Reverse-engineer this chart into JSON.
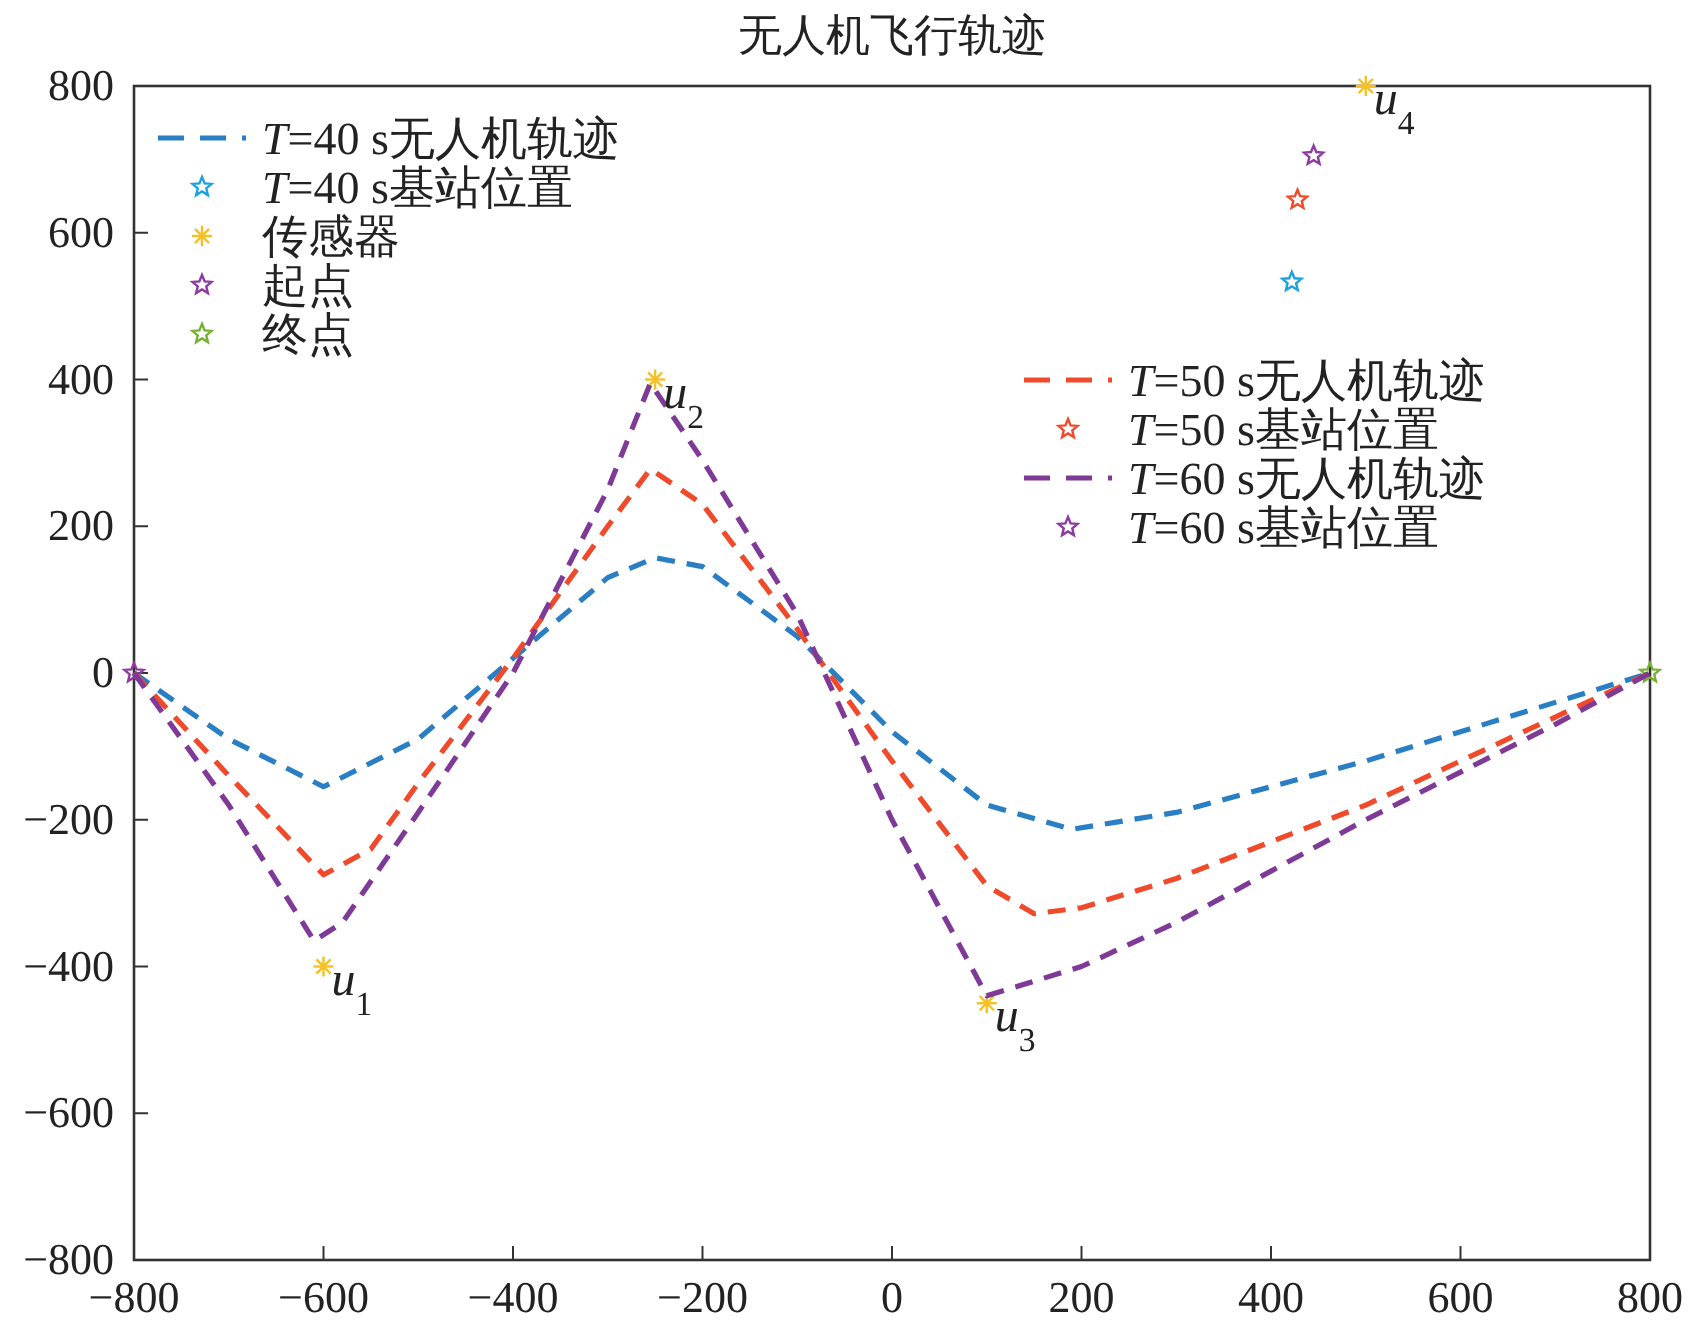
{
  "chart_data": {
    "type": "line",
    "title": "无人机飞行轨迹",
    "xlim": [
      -800,
      800
    ],
    "ylim": [
      -800,
      800
    ],
    "xticks": [
      -800,
      -600,
      -400,
      -200,
      0,
      200,
      400,
      600,
      800
    ],
    "yticks": [
      -800,
      -600,
      -400,
      -200,
      0,
      200,
      400,
      600,
      800
    ],
    "grid": false,
    "legend": "top left",
    "line_style": "dashed",
    "series": [
      {
        "name": "T=40 s无人机轨迹",
        "color": "#2a7fc4",
        "x": [
          -800,
          -700,
          -600,
          -500,
          -400,
          -300,
          -250,
          -200,
          -100,
          0,
          100,
          190,
          300,
          400,
          500,
          600,
          700,
          800
        ],
        "values": [
          0,
          -90,
          -155,
          -90,
          20,
          130,
          157,
          145,
          50,
          -80,
          -180,
          -213,
          -190,
          -155,
          -120,
          -80,
          -40,
          0
        ]
      },
      {
        "name": "T=40 s基站位置",
        "type": "scatter",
        "marker": "star",
        "color": "#1aa3e0",
        "x": [
          422
        ],
        "values": [
          533
        ]
      },
      {
        "name": "传感器",
        "type": "scatter",
        "marker": "cross",
        "color": "#f5c026",
        "x": [
          -600,
          -250,
          100,
          500
        ],
        "values": [
          -400,
          400,
          -450,
          800
        ]
      },
      {
        "name": "起点",
        "type": "scatter",
        "marker": "star",
        "color": "#8e3a9e",
        "x": [
          -800
        ],
        "values": [
          0
        ]
      },
      {
        "name": "终点",
        "type": "scatter",
        "marker": "star",
        "color": "#77b030",
        "x": [
          800
        ],
        "values": [
          0
        ]
      },
      {
        "name": "T=50 s无人机轨迹",
        "color": "#f04a2b",
        "x": [
          -800,
          -700,
          -600,
          -550,
          -500,
          -400,
          -300,
          -255,
          -200,
          -100,
          0,
          100,
          150,
          200,
          300,
          400,
          500,
          600,
          700,
          800
        ],
        "values": [
          0,
          -140,
          -275,
          -240,
          -150,
          20,
          200,
          278,
          230,
          60,
          -120,
          -290,
          -328,
          -320,
          -280,
          -230,
          -180,
          -120,
          -60,
          0
        ]
      },
      {
        "name": "T=50 s基站位置",
        "type": "scatter",
        "marker": "star",
        "color": "#f04a2b",
        "x": [
          428
        ],
        "values": [
          645
        ]
      },
      {
        "name": "T=60 s无人机轨迹",
        "color": "#7e3a96",
        "x": [
          -800,
          -700,
          -610,
          -580,
          -500,
          -400,
          -300,
          -255,
          -200,
          -100,
          0,
          100,
          200,
          300,
          400,
          500,
          600,
          700,
          800
        ],
        "values": [
          0,
          -180,
          -365,
          -340,
          -190,
          0,
          250,
          395,
          290,
          80,
          -200,
          -440,
          -400,
          -340,
          -270,
          -200,
          -135,
          -70,
          0
        ]
      },
      {
        "name": "T=60 s基站位置",
        "type": "scatter",
        "marker": "star",
        "color": "#8e3a9e",
        "x": [
          445
        ],
        "values": [
          705
        ]
      }
    ],
    "annotations": [
      {
        "text": "u$_{1}$",
        "x": -600,
        "y": -400
      },
      {
        "text": "u$_{2}$",
        "x": -250,
        "y": 400
      },
      {
        "text": "u$_{3}$",
        "x": 100,
        "y": -450
      },
      {
        "text": "u$_{4}$",
        "x": 500,
        "y": 800
      }
    ]
  }
}
